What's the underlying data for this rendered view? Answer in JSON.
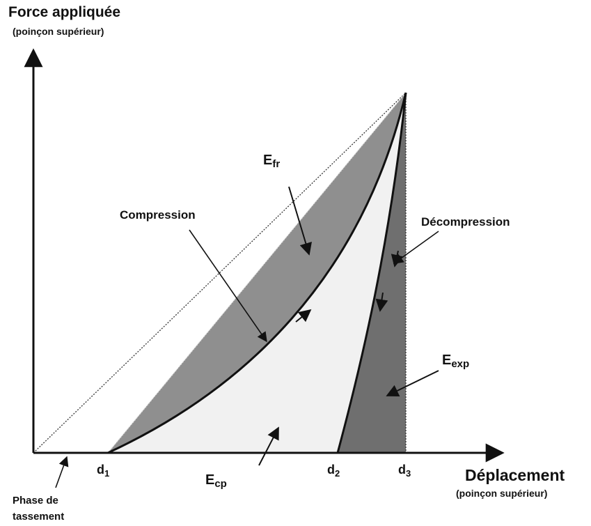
{
  "axes": {
    "y": {
      "title": "Force appliquée",
      "subtitle": "(poinçon supérieur)"
    },
    "x": {
      "title": "Déplacement",
      "subtitle": "(poinçon supérieur)"
    }
  },
  "ticks": [
    {
      "main": "d",
      "sub": "1"
    },
    {
      "main": "d",
      "sub": "2"
    },
    {
      "main": "d",
      "sub": "3"
    }
  ],
  "labels": {
    "efr": {
      "main": "E",
      "sub": "fr"
    },
    "ecp": {
      "main": "E",
      "sub": "cp"
    },
    "eexp": {
      "main": "E",
      "sub": "exp"
    },
    "compression": "Compression",
    "decompression": "Décompression",
    "phase": [
      "Phase de",
      "tassement"
    ]
  }
}
